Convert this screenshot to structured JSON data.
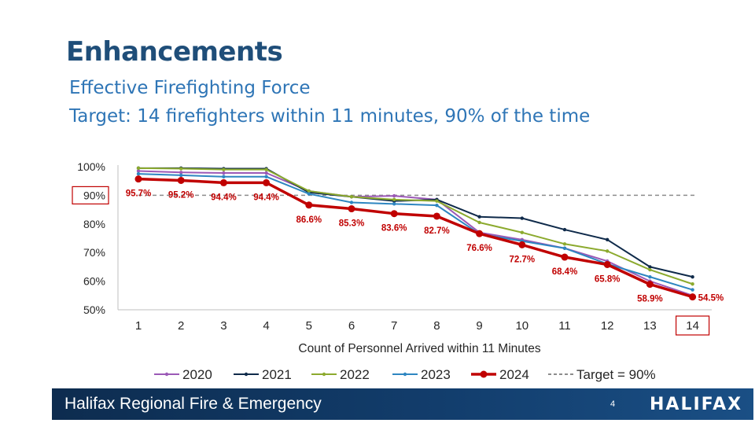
{
  "header": {
    "title": "Enhancements",
    "subtitle_line1": "Effective Firefighting Force",
    "subtitle_line2": "Target: 14 firefighters within 11 minutes, 90% of the time"
  },
  "footer": {
    "org_name": "Halifax Regional Fire & Emergency",
    "page_number": "4",
    "logo_text": "HALIFAX"
  },
  "chart_data": {
    "type": "line",
    "title": "",
    "xlabel": "Count of Personnel Arrived within 11 Minutes",
    "ylabel": "",
    "x": [
      1,
      2,
      3,
      4,
      5,
      6,
      7,
      8,
      9,
      10,
      11,
      12,
      13,
      14
    ],
    "ylim": [
      50,
      100
    ],
    "yticks": [
      "100%",
      "90%",
      "80%",
      "70%",
      "60%",
      "50%"
    ],
    "highlighted_ytick": "90%",
    "highlighted_xtick": "14",
    "series": [
      {
        "name": "2020",
        "color": "#9B59B6",
        "values": [
          98.5,
          98,
          97.8,
          97.8,
          91.5,
          89.5,
          89.8,
          88.5,
          77,
          74.5,
          71.5,
          67,
          60,
          55
        ]
      },
      {
        "name": "2021",
        "color": "#0F2A4A",
        "values": [
          99.5,
          99.5,
          99.3,
          99.3,
          91,
          89.5,
          88,
          88.5,
          82.5,
          82,
          78,
          74.5,
          65,
          61.5
        ]
      },
      {
        "name": "2022",
        "color": "#8CAA2E",
        "values": [
          99.5,
          99.3,
          99,
          99,
          91.5,
          89.5,
          88.5,
          88,
          80.5,
          77,
          73,
          70.5,
          64,
          59
        ]
      },
      {
        "name": "2023",
        "color": "#2E86C1",
        "values": [
          97.5,
          97,
          96.5,
          96.5,
          90.5,
          87.5,
          87,
          86.5,
          76.5,
          74,
          71.5,
          66,
          61.5,
          57
        ]
      },
      {
        "name": "2024",
        "color": "#C00000",
        "values": [
          95.7,
          95.2,
          94.4,
          94.4,
          86.6,
          85.3,
          83.6,
          82.7,
          76.6,
          72.7,
          68.4,
          65.8,
          58.9,
          54.5
        ]
      }
    ],
    "data_labels": [
      "95.7%",
      "95.2%",
      "94.4%",
      "94.4%",
      "86.6%",
      "85.3%",
      "83.6%",
      "82.7%",
      "76.6%",
      "72.7%",
      "68.4%",
      "65.8%",
      "58.9%",
      "54.5%"
    ],
    "target": {
      "name": "Target = 90%",
      "value": 90,
      "color": "#8C8C8C"
    },
    "legend_position": "bottom"
  }
}
